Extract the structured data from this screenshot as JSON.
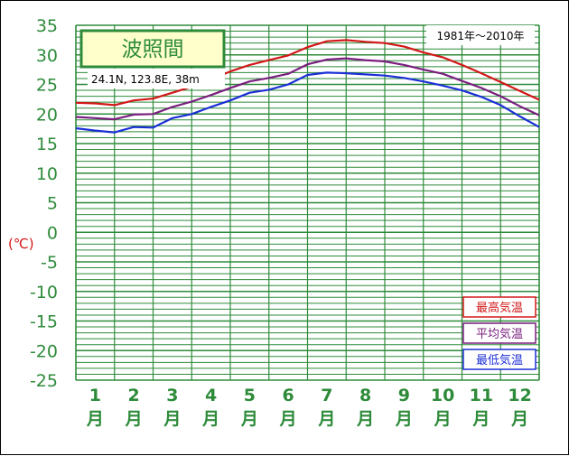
{
  "chart_data": {
    "type": "line",
    "title": "波照間",
    "subtitle": "24.1N, 123.8E, 38m",
    "period": "1981年〜2010年",
    "ylabel": "(℃)",
    "ylim": [
      -25,
      35
    ],
    "yticks": [
      "35",
      "30",
      "25",
      "20",
      "15",
      "10",
      "5",
      "0",
      "-5",
      "-10",
      "-15",
      "-20",
      "-25"
    ],
    "months": [
      {
        "num": "1",
        "unit": "月"
      },
      {
        "num": "2",
        "unit": "月"
      },
      {
        "num": "3",
        "unit": "月"
      },
      {
        "num": "4",
        "unit": "月"
      },
      {
        "num": "5",
        "unit": "月"
      },
      {
        "num": "6",
        "unit": "月"
      },
      {
        "num": "7",
        "unit": "月"
      },
      {
        "num": "8",
        "unit": "月"
      },
      {
        "num": "9",
        "unit": "月"
      },
      {
        "num": "10",
        "unit": "月"
      },
      {
        "num": "11",
        "unit": "月"
      },
      {
        "num": "12",
        "unit": "月"
      }
    ],
    "grid": true,
    "legend": "bottom-right",
    "series": [
      {
        "name": "最高気温",
        "color": "#d21818",
        "x": [
          0.0,
          0.5,
          1.0,
          1.5,
          2.0,
          2.5,
          3.0,
          3.5,
          4.0,
          4.5,
          5.0,
          5.5,
          6.0,
          6.5,
          7.0,
          7.5,
          8.0,
          8.5,
          9.0,
          9.5,
          10.0,
          10.5,
          11.0,
          11.5,
          12.0
        ],
        "values": [
          21.9,
          21.8,
          21.5,
          22.3,
          22.6,
          23.6,
          24.6,
          25.8,
          27.2,
          28.3,
          29.1,
          29.9,
          31.3,
          32.3,
          32.5,
          32.2,
          32.0,
          31.4,
          30.4,
          29.6,
          28.3,
          26.9,
          25.4,
          23.9,
          22.4
        ]
      },
      {
        "name": "平均気温",
        "color": "#7a1f7f",
        "x": [
          0.0,
          0.5,
          1.0,
          1.5,
          2.0,
          2.5,
          3.0,
          3.5,
          4.0,
          4.5,
          5.0,
          5.5,
          6.0,
          6.5,
          7.0,
          7.5,
          8.0,
          8.5,
          9.0,
          9.5,
          10.0,
          10.5,
          11.0,
          11.5,
          12.0
        ],
        "values": [
          19.5,
          19.3,
          19.1,
          19.9,
          20.0,
          21.2,
          22.1,
          23.2,
          24.4,
          25.5,
          26.1,
          26.8,
          28.4,
          29.2,
          29.4,
          29.1,
          28.9,
          28.3,
          27.5,
          26.8,
          25.6,
          24.4,
          23.0,
          21.3,
          19.8
        ]
      },
      {
        "name": "最低気温",
        "color": "#1c2fd6",
        "x": [
          0.0,
          0.5,
          1.0,
          1.5,
          2.0,
          2.5,
          3.0,
          3.5,
          4.0,
          4.5,
          5.0,
          5.5,
          6.0,
          6.5,
          7.0,
          7.5,
          8.0,
          8.5,
          9.0,
          9.5,
          10.0,
          10.5,
          11.0,
          11.5,
          12.0
        ],
        "values": [
          17.6,
          17.2,
          16.9,
          17.8,
          17.7,
          19.3,
          20.0,
          21.2,
          22.3,
          23.6,
          24.1,
          25.0,
          26.6,
          27.0,
          26.9,
          26.7,
          26.5,
          26.1,
          25.5,
          24.8,
          24.0,
          22.9,
          21.5,
          19.6,
          17.8
        ]
      }
    ]
  }
}
